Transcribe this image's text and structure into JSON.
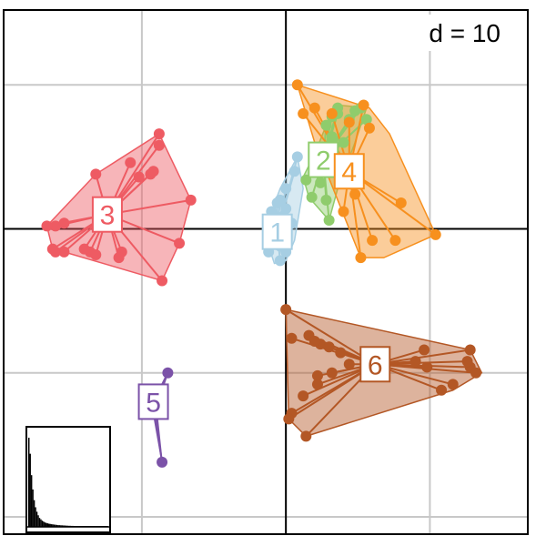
{
  "chart_data": {
    "type": "scatter",
    "title": "",
    "xlabel": "",
    "ylabel": "",
    "scale_label": "d = 10",
    "xlim": [
      -49,
      42
    ],
    "ylim": [
      -53,
      38
    ],
    "grid": true,
    "grid_step": 25,
    "groups": [
      {
        "label": "1",
        "color": "#a6cee3",
        "centroid": [
          -1.5,
          -0.5
        ],
        "points": [
          [
            2,
            12.5
          ],
          [
            1.5,
            10
          ],
          [
            0,
            7
          ],
          [
            -1,
            5
          ],
          [
            0,
            3.5
          ],
          [
            -1,
            2
          ],
          [
            1,
            1
          ],
          [
            -2,
            -1
          ],
          [
            -1,
            -3
          ],
          [
            0,
            -4
          ],
          [
            -1,
            -5.5
          ],
          [
            -3,
            -4
          ],
          [
            -2,
            -2
          ],
          [
            -1.5,
            0
          ],
          [
            -2.5,
            3
          ],
          [
            -1.5,
            4.5
          ]
        ],
        "hull": [
          [
            2,
            12.5
          ],
          [
            3,
            7
          ],
          [
            1.5,
            -2
          ],
          [
            0,
            -5.5
          ],
          [
            -2,
            -6
          ],
          [
            -3,
            -3
          ],
          [
            -2.5,
            3
          ],
          [
            -1,
            7
          ]
        ]
      },
      {
        "label": "2",
        "color": "#8fcc6c",
        "centroid": [
          6.5,
          12
        ],
        "points": [
          [
            7,
            18
          ],
          [
            8,
            19.5
          ],
          [
            9,
            20
          ],
          [
            11,
            19
          ],
          [
            12,
            20.5
          ],
          [
            14,
            19
          ],
          [
            9,
            21
          ],
          [
            13,
            21
          ],
          [
            8,
            16
          ],
          [
            5.5,
            12
          ],
          [
            6,
            8
          ],
          [
            7,
            5
          ],
          [
            7.5,
            1.5
          ],
          [
            4.5,
            5.5
          ],
          [
            3.5,
            8.5
          ],
          [
            10,
            15
          ]
        ],
        "hull": [
          [
            9,
            21.5
          ],
          [
            14,
            21
          ],
          [
            12,
            15
          ],
          [
            9,
            7
          ],
          [
            7.5,
            1.5
          ],
          [
            4,
            5.5
          ],
          [
            3,
            9
          ],
          [
            5,
            13
          ],
          [
            7,
            18
          ]
        ]
      },
      {
        "label": "4",
        "color": "#f7901e",
        "centroid": [
          11,
          10
        ],
        "points": [
          [
            2,
            25
          ],
          [
            13.5,
            21.5
          ],
          [
            11,
            18.5
          ],
          [
            14.5,
            17.5
          ],
          [
            10.5,
            9
          ],
          [
            12,
            6
          ],
          [
            10,
            3
          ],
          [
            20,
            4.5
          ],
          [
            19,
            -2
          ],
          [
            15,
            -2
          ],
          [
            13,
            -5
          ],
          [
            26,
            -1
          ],
          [
            3,
            20
          ],
          [
            5,
            21
          ],
          [
            8,
            20
          ]
        ],
        "hull": [
          [
            2,
            25
          ],
          [
            14.5,
            21
          ],
          [
            18,
            16.5
          ],
          [
            26,
            -1
          ],
          [
            17,
            -5
          ],
          [
            13,
            -5
          ],
          [
            5,
            15
          ]
        ]
      },
      {
        "label": "3",
        "color": "#ee5b63",
        "centroid": [
          -31,
          2.5
        ],
        "points": [
          [
            -22,
            16.5
          ],
          [
            -22,
            14.5
          ],
          [
            -23.5,
            9.5
          ],
          [
            -25.5,
            9
          ],
          [
            -23,
            10
          ],
          [
            -27,
            11.5
          ],
          [
            -33,
            9.5
          ],
          [
            -16.5,
            5
          ],
          [
            -18.5,
            -2.5
          ],
          [
            -21.5,
            -9
          ],
          [
            -34,
            -4
          ],
          [
            -35,
            -3.5
          ],
          [
            -28.5,
            -4
          ],
          [
            -38.5,
            -4
          ],
          [
            -40,
            -4
          ],
          [
            -40,
            0.5
          ],
          [
            -41.5,
            0.5
          ],
          [
            -38.5,
            1
          ],
          [
            -40.5,
            -3.5
          ],
          [
            -33,
            -4.5
          ],
          [
            -29,
            -5
          ]
        ],
        "hull": [
          [
            -22,
            16.5
          ],
          [
            -16.5,
            5
          ],
          [
            -18.5,
            -2.5
          ],
          [
            -21.5,
            -9
          ],
          [
            -38.5,
            -4
          ],
          [
            -40.5,
            -3.5
          ],
          [
            -41.5,
            0.5
          ],
          [
            -33,
            9.5
          ]
        ]
      },
      {
        "label": "5",
        "color": "#7b52a8",
        "centroid": [
          -23,
          -30
        ],
        "points": [
          [
            -20.5,
            -25
          ],
          [
            -21.5,
            -40.5
          ]
        ],
        "hull": [
          [
            -20.5,
            -25
          ],
          [
            -22.5,
            -31
          ],
          [
            -21.5,
            -40.5
          ],
          [
            -23,
            -32
          ]
        ]
      },
      {
        "label": "6",
        "color": "#b35725",
        "centroid": [
          15.5,
          -23.5
        ],
        "points": [
          [
            0,
            -14
          ],
          [
            1,
            -19
          ],
          [
            4,
            -18.5
          ],
          [
            6,
            -20
          ],
          [
            5,
            -19.5
          ],
          [
            7.5,
            -20.5
          ],
          [
            9.5,
            -21.5
          ],
          [
            11,
            -23.5
          ],
          [
            8,
            -25
          ],
          [
            5.5,
            -25.5
          ],
          [
            5.5,
            -27
          ],
          [
            3,
            -29
          ],
          [
            1,
            -32
          ],
          [
            0.5,
            -33
          ],
          [
            3.5,
            -36
          ],
          [
            15.5,
            -23.5
          ],
          [
            24,
            -21
          ],
          [
            32,
            -21
          ],
          [
            32,
            -24
          ],
          [
            31.5,
            -23
          ],
          [
            33,
            -25
          ],
          [
            29,
            -27
          ],
          [
            27,
            -28
          ],
          [
            24.5,
            -24
          ],
          [
            14.5,
            -21.5
          ],
          [
            22.5,
            -23
          ]
        ],
        "hull": [
          [
            0,
            -14
          ],
          [
            32,
            -21
          ],
          [
            34,
            -25
          ],
          [
            29,
            -28
          ],
          [
            3.5,
            -36
          ],
          [
            0.5,
            -33
          ]
        ]
      }
    ],
    "inset": {
      "type": "bar",
      "name": "eigenvalues",
      "values": [
        1.0,
        0.82,
        0.58,
        0.42,
        0.3,
        0.22,
        0.17,
        0.13,
        0.1,
        0.085,
        0.07,
        0.06,
        0.05,
        0.045,
        0.04,
        0.036,
        0.033,
        0.03,
        0.028,
        0.026,
        0.024,
        0.022,
        0.02,
        0.019,
        0.018,
        0.017,
        0.016,
        0.015,
        0.014,
        0.013,
        0.012,
        0.012,
        0.011,
        0.011,
        0.01,
        0.01,
        0.01,
        0.009,
        0.009,
        0.009,
        0.009,
        0.008,
        0.008,
        0.008,
        0.008,
        0.008,
        0.008,
        0.008,
        0.008,
        0.008,
        0.008,
        0.008,
        0.008,
        0.008,
        0.008,
        0.008,
        0.008,
        0.008,
        0.008,
        0.008
      ],
      "position": "bottom-left"
    }
  }
}
